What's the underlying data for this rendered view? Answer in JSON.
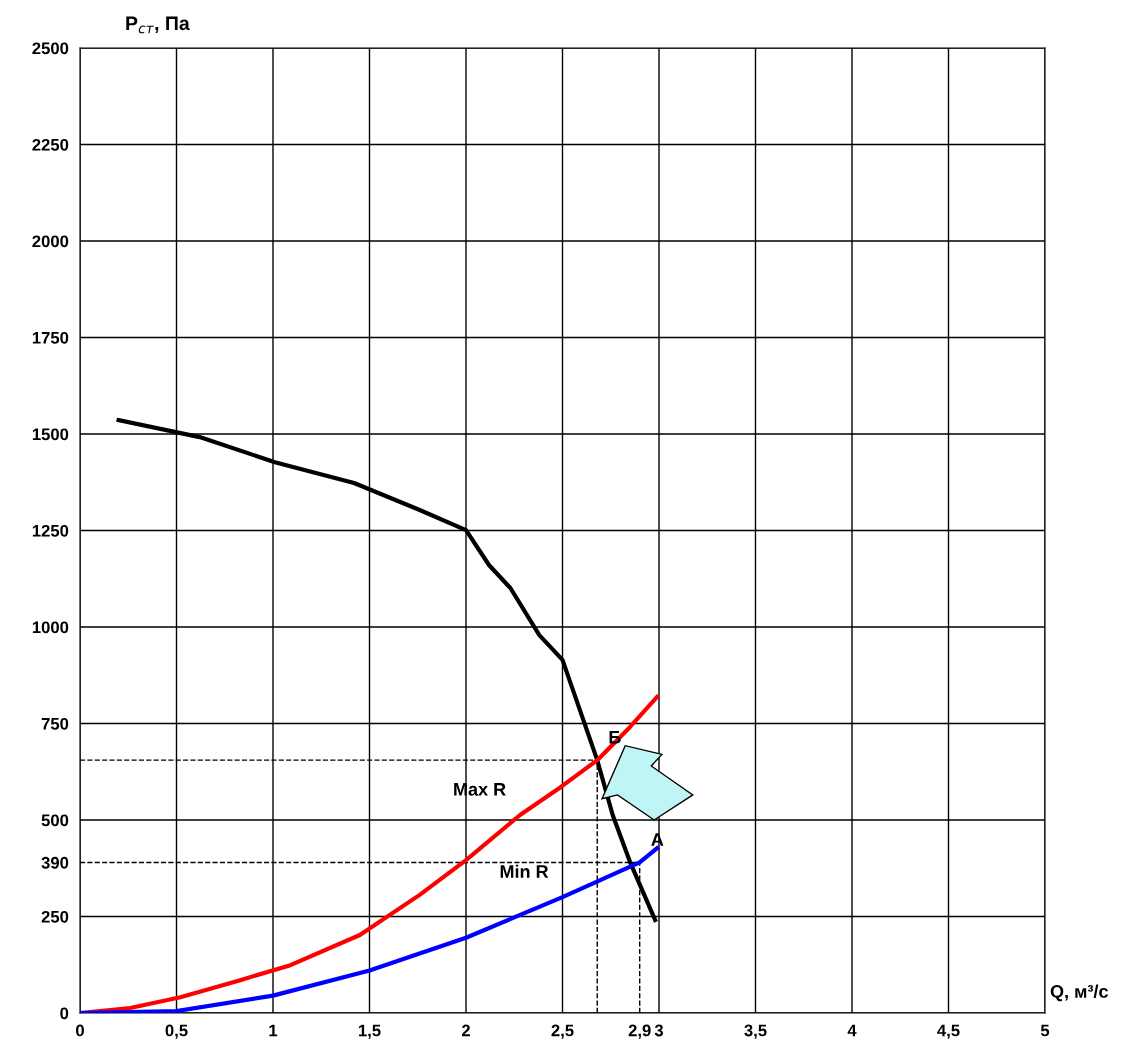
{
  "chart_data": {
    "type": "line",
    "xlabel": "Q, м³/с",
    "ylabel": "P$_{ст}$, Па",
    "xlim": [
      0,
      5
    ],
    "ylim": [
      0,
      2500
    ],
    "xticks": [
      0,
      {
        "value": 0.5,
        "label": "0,5"
      },
      1,
      {
        "value": 1.5,
        "label": "1,5"
      },
      2,
      {
        "value": 2.5,
        "label": "2,5"
      },
      {
        "value": 2.9,
        "label": "2,9"
      },
      3,
      {
        "value": 3.5,
        "label": "3,5"
      },
      4,
      {
        "value": 4.5,
        "label": "4,5"
      },
      5
    ],
    "yticks": [
      0,
      250,
      390,
      500,
      750,
      1000,
      1250,
      1500,
      1750,
      2000,
      2250,
      2500
    ],
    "grid": true,
    "line_style": "solid",
    "marker": "none",
    "series": [
      {
        "color": "#000000",
        "x": [
          0.2,
          0.62,
          1.01,
          1.42,
          1.76,
          2.0,
          2.12,
          2.23,
          2.38,
          2.5,
          2.68,
          2.76,
          2.85,
          2.98
        ],
        "values": [
          1536,
          1492,
          1427,
          1373,
          1303,
          1251,
          1160,
          1101,
          979,
          915,
          655,
          513,
          391,
          241
        ]
      },
      {
        "name": "Max R",
        "color": "#ff0000",
        "x": [
          0,
          0.26,
          0.52,
          0.83,
          1.09,
          1.45,
          1.76,
          2.0,
          2.28,
          2.49,
          2.68,
          2.85,
          2.99
        ],
        "values": [
          0,
          13,
          41,
          85,
          124,
          202,
          306,
          396,
          513,
          585,
          655,
          741,
          819
        ]
      },
      {
        "name": "Min R",
        "color": "#0000ff",
        "x": [
          0,
          0.5,
          1.0,
          1.5,
          2.0,
          2.5,
          2.9,
          2.99
        ],
        "values": [
          0,
          5,
          45,
          110,
          195,
          300,
          390,
          427
        ]
      }
    ],
    "ref_lines": [
      {
        "axis": "y",
        "value": 655,
        "color": "#000000",
        "line_style": "dashed"
      },
      {
        "axis": "y",
        "value": 390,
        "color": "#000000",
        "line_style": "dashed"
      },
      {
        "axis": "x",
        "value": 2.68,
        "color": "#000000",
        "line_style": "dashed"
      },
      {
        "axis": "x",
        "value": 2.9,
        "color": "#000000",
        "line_style": "dashed"
      }
    ],
    "annotations": [
      {
        "text": "Б",
        "x": 2.68,
        "y": 655
      },
      {
        "text": "А",
        "x": 2.9,
        "y": 390
      }
    ]
  }
}
